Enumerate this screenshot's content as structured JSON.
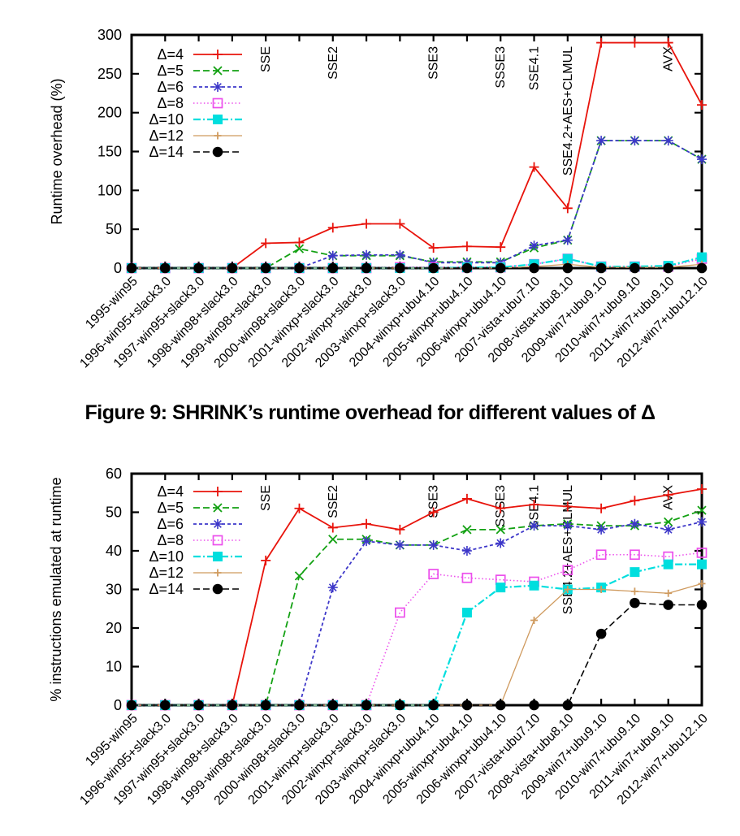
{
  "figure": {
    "caption": "Figure 9: SHRINK’s runtime overhead for different values of Δ"
  },
  "chart_data": [
    {
      "type": "line",
      "title": "",
      "xlabel": "",
      "ylabel": "Runtime overhead (%)",
      "ylim": [
        0,
        300
      ],
      "yticks": [
        0,
        50,
        100,
        150,
        200,
        250,
        300
      ],
      "grid": false,
      "legend_position": "top-left-inside",
      "categories": [
        "1995-win95",
        "1996-win95+slack3.0",
        "1997-win95+slack3.0",
        "1998-win98+slack3.0",
        "1999-win98+slack3.0",
        "2000-win98+slack3.0",
        "2001-winxp+slack3.0",
        "2002-winxp+slack3.0",
        "2003-winxp+slack3.0",
        "2004-winxp+ubu4.10",
        "2005-winxp+ubu4.10",
        "2006-winxp+ubu4.10",
        "2007-vista+ubu7.10",
        "2008-vista+ubu8.10",
        "2009-win7+ubu9.10",
        "2010-win7+ubu9.10",
        "2011-win7+ubu9.10",
        "2012-win7+ubu12.10"
      ],
      "annotations": [
        {
          "label": "SSE",
          "category_index": 4
        },
        {
          "label": "SSE2",
          "category_index": 6
        },
        {
          "label": "SSE3",
          "category_index": 9
        },
        {
          "label": "SSSE3",
          "category_index": 11
        },
        {
          "label": "SSE4.1",
          "category_index": 12
        },
        {
          "label": "SSE4.2+AES+CLMUL",
          "category_index": 13
        },
        {
          "label": "AVX",
          "category_index": 16
        }
      ],
      "series": [
        {
          "name": "Δ=4",
          "color": "#e8140c",
          "marker": "plus",
          "dash": "solid",
          "values": [
            0,
            0,
            0,
            0,
            32,
            33,
            52,
            57,
            57,
            26,
            28,
            27,
            130,
            77,
            290,
            290,
            290,
            210
          ]
        },
        {
          "name": "Δ=5",
          "color": "#13a113",
          "marker": "cross",
          "dash": "dash",
          "values": [
            0,
            0,
            0,
            0,
            0,
            25,
            16,
            16,
            16,
            8,
            8,
            8,
            26,
            36,
            164,
            164,
            164,
            140
          ]
        },
        {
          "name": "Δ=6",
          "color": "#3d37c9",
          "marker": "star",
          "dash": "shortdash",
          "values": [
            0,
            0,
            0,
            0,
            0,
            0,
            16,
            17,
            17,
            7,
            7,
            7,
            29,
            36,
            164,
            164,
            164,
            140
          ]
        },
        {
          "name": "Δ=8",
          "color": "#ec4fec",
          "marker": "square-open",
          "dash": "dot",
          "values": [
            0,
            0,
            0,
            0,
            0,
            0,
            0,
            0,
            1,
            1,
            1,
            1,
            5,
            12,
            2,
            2,
            2,
            12
          ]
        },
        {
          "name": "Δ=10",
          "color": "#00dede",
          "marker": "square-filled",
          "dash": "dashdot",
          "values": [
            0,
            0,
            0,
            0,
            0,
            0,
            0,
            0,
            0,
            0,
            1,
            1,
            5,
            12,
            2,
            2,
            3,
            14
          ]
        },
        {
          "name": "Δ=12",
          "color": "#cf9a5e",
          "marker": "plus-small",
          "dash": "solid",
          "values": [
            0,
            0,
            0,
            0,
            0,
            0,
            0,
            0,
            0,
            0,
            0,
            0,
            2,
            5,
            1,
            1,
            1,
            5
          ]
        },
        {
          "name": "Δ=14",
          "color": "#000000",
          "marker": "circle-filled",
          "dash": "dash",
          "values": [
            0,
            0,
            0,
            0,
            0,
            0,
            0,
            0,
            0,
            0,
            0,
            0,
            0,
            0,
            0,
            0,
            0,
            0
          ]
        }
      ]
    },
    {
      "type": "line",
      "title": "",
      "xlabel": "",
      "ylabel": "% instructions emulated at runtime",
      "ylim": [
        0,
        60
      ],
      "yticks": [
        0,
        10,
        20,
        30,
        40,
        50,
        60
      ],
      "grid": false,
      "legend_position": "top-left-inside",
      "categories": [
        "1995-win95",
        "1996-win95+slack3.0",
        "1997-win95+slack3.0",
        "1998-win98+slack3.0",
        "1999-win98+slack3.0",
        "2000-win98+slack3.0",
        "2001-winxp+slack3.0",
        "2002-winxp+slack3.0",
        "2003-winxp+slack3.0",
        "2004-winxp+ubu4.10",
        "2005-winxp+ubu4.10",
        "2006-winxp+ubu4.10",
        "2007-vista+ubu7.10",
        "2008-vista+ubu8.10",
        "2009-win7+ubu9.10",
        "2010-win7+ubu9.10",
        "2011-win7+ubu9.10",
        "2012-win7+ubu12.10"
      ],
      "annotations": [
        {
          "label": "SSE",
          "category_index": 4
        },
        {
          "label": "SSE2",
          "category_index": 6
        },
        {
          "label": "SSE3",
          "category_index": 9
        },
        {
          "label": "SSSE3",
          "category_index": 11
        },
        {
          "label": "SSE4.1",
          "category_index": 12
        },
        {
          "label": "SSE4.2+AES+CLMUL",
          "category_index": 13
        },
        {
          "label": "AVX",
          "category_index": 16
        }
      ],
      "series": [
        {
          "name": "Δ=4",
          "color": "#e8140c",
          "marker": "plus",
          "dash": "solid",
          "values": [
            0,
            0,
            0,
            0,
            37.5,
            51,
            46,
            47,
            45.5,
            50,
            53.5,
            51,
            52,
            51.5,
            51,
            53,
            54.5,
            56
          ]
        },
        {
          "name": "Δ=5",
          "color": "#13a113",
          "marker": "cross",
          "dash": "dash",
          "values": [
            0,
            0,
            0,
            0,
            0,
            33.5,
            43,
            43,
            41.5,
            41.5,
            45.5,
            45.5,
            46.5,
            47,
            46.5,
            46.5,
            47.5,
            50.5
          ]
        },
        {
          "name": "Δ=6",
          "color": "#3d37c9",
          "marker": "star",
          "dash": "shortdash",
          "values": [
            0,
            0,
            0,
            0,
            0,
            0,
            30.5,
            42.5,
            41.5,
            41.5,
            40,
            42,
            46.5,
            46.5,
            45.5,
            47,
            45.5,
            47.5
          ]
        },
        {
          "name": "Δ=8",
          "color": "#ec4fec",
          "marker": "square-open",
          "dash": "dot",
          "values": [
            0,
            0,
            0,
            0,
            0,
            0,
            0,
            0,
            24,
            34,
            33,
            32.5,
            32,
            35,
            39,
            39,
            38.5,
            39.5
          ]
        },
        {
          "name": "Δ=10",
          "color": "#00dede",
          "marker": "square-filled",
          "dash": "dashdot",
          "values": [
            0,
            0,
            0,
            0,
            0,
            0,
            0,
            0,
            0,
            0,
            24,
            30.5,
            31,
            30,
            30.5,
            34.5,
            36.5,
            36.5
          ]
        },
        {
          "name": "Δ=12",
          "color": "#cf9a5e",
          "marker": "plus-small",
          "dash": "solid",
          "values": [
            0,
            0,
            0,
            0,
            0,
            0,
            0,
            0,
            0,
            0,
            0,
            0,
            22,
            30,
            30,
            29.5,
            29,
            31.5
          ]
        },
        {
          "name": "Δ=14",
          "color": "#000000",
          "marker": "circle-filled",
          "dash": "dash",
          "values": [
            0,
            0,
            0,
            0,
            0,
            0,
            0,
            0,
            0,
            0,
            0,
            0,
            0,
            0,
            18.5,
            26.5,
            26,
            26
          ]
        }
      ]
    }
  ]
}
